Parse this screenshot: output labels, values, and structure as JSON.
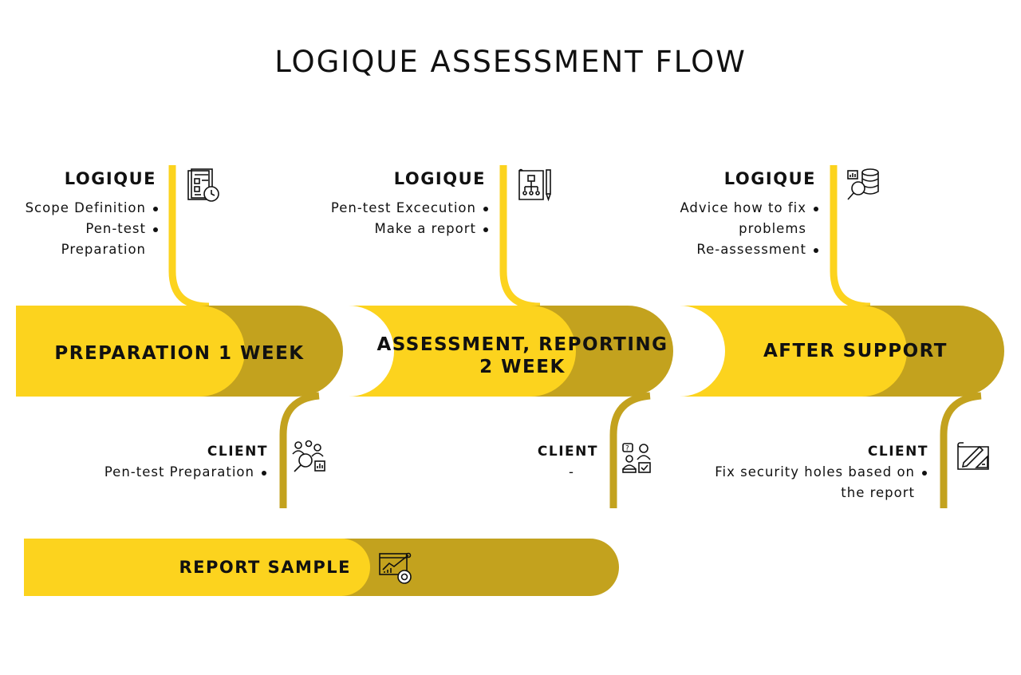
{
  "title": "LOGIQUE ASSESSMENT FLOW",
  "colors": {
    "primary": "#FCD31E",
    "secondary": "#C3A21E",
    "text": "#111111"
  },
  "stages": [
    {
      "label": "PREPARATION 1 WEEK",
      "logique": {
        "heading": "LOGIQUE",
        "icon": "document-clock-icon",
        "items": [
          "Scope Definition",
          "Pen-test",
          "Preparation"
        ]
      },
      "client": {
        "heading": "CLIENT",
        "icon": "team-search-icon",
        "items": [
          "Pen-test Preparation"
        ]
      }
    },
    {
      "label_line1": "ASSESSMENT, REPORTING",
      "label_line2": "2 WEEK",
      "logique": {
        "heading": "LOGIQUE",
        "icon": "flowchart-board-icon",
        "items": [
          "Pen-test Excecution",
          "Make a report"
        ]
      },
      "client": {
        "heading": "CLIENT",
        "icon": "question-people-icon",
        "items": [
          "-"
        ]
      }
    },
    {
      "label": "AFTER SUPPORT",
      "logique": {
        "heading": "LOGIQUE",
        "icon": "database-search-icon",
        "items": [
          "Advice how to fix",
          "problems",
          "Re-assessment"
        ]
      },
      "client": {
        "heading": "CLIENT",
        "icon": "blueprint-pencil-icon",
        "items": [
          "Fix security holes based on",
          "the report"
        ]
      }
    }
  ],
  "report": {
    "label": "REPORT SAMPLE",
    "icon": "report-chart-icon"
  }
}
